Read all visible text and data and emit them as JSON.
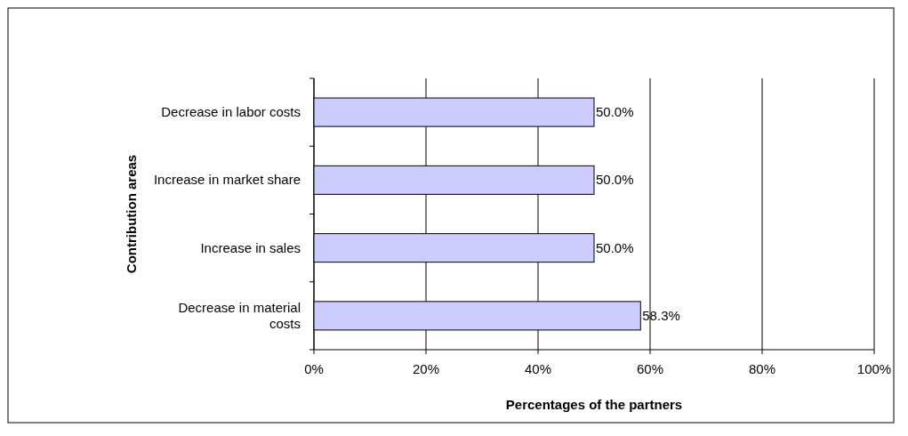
{
  "chart_data": {
    "type": "bar",
    "orientation": "horizontal",
    "xlabel": "Percentages of the partners",
    "ylabel": "Contribution areas",
    "categories": [
      "Decrease in labor costs",
      "Increase in market share",
      "Increase in sales",
      "Decrease in material costs"
    ],
    "values": [
      50,
      50,
      50,
      58.3
    ],
    "value_labels": [
      "50.0%",
      "50.0%",
      "50.0%",
      "58.3%"
    ],
    "color": "#ccccff",
    "xlim": [
      0,
      100
    ],
    "xticks": [
      {
        "value": 0,
        "label": "0%"
      },
      {
        "value": 20,
        "label": "20%"
      },
      {
        "value": 40,
        "label": "40%"
      },
      {
        "value": 60,
        "label": "60%"
      },
      {
        "value": 80,
        "label": "80%"
      },
      {
        "value": 100,
        "label": "100%"
      }
    ],
    "grid": "x"
  }
}
